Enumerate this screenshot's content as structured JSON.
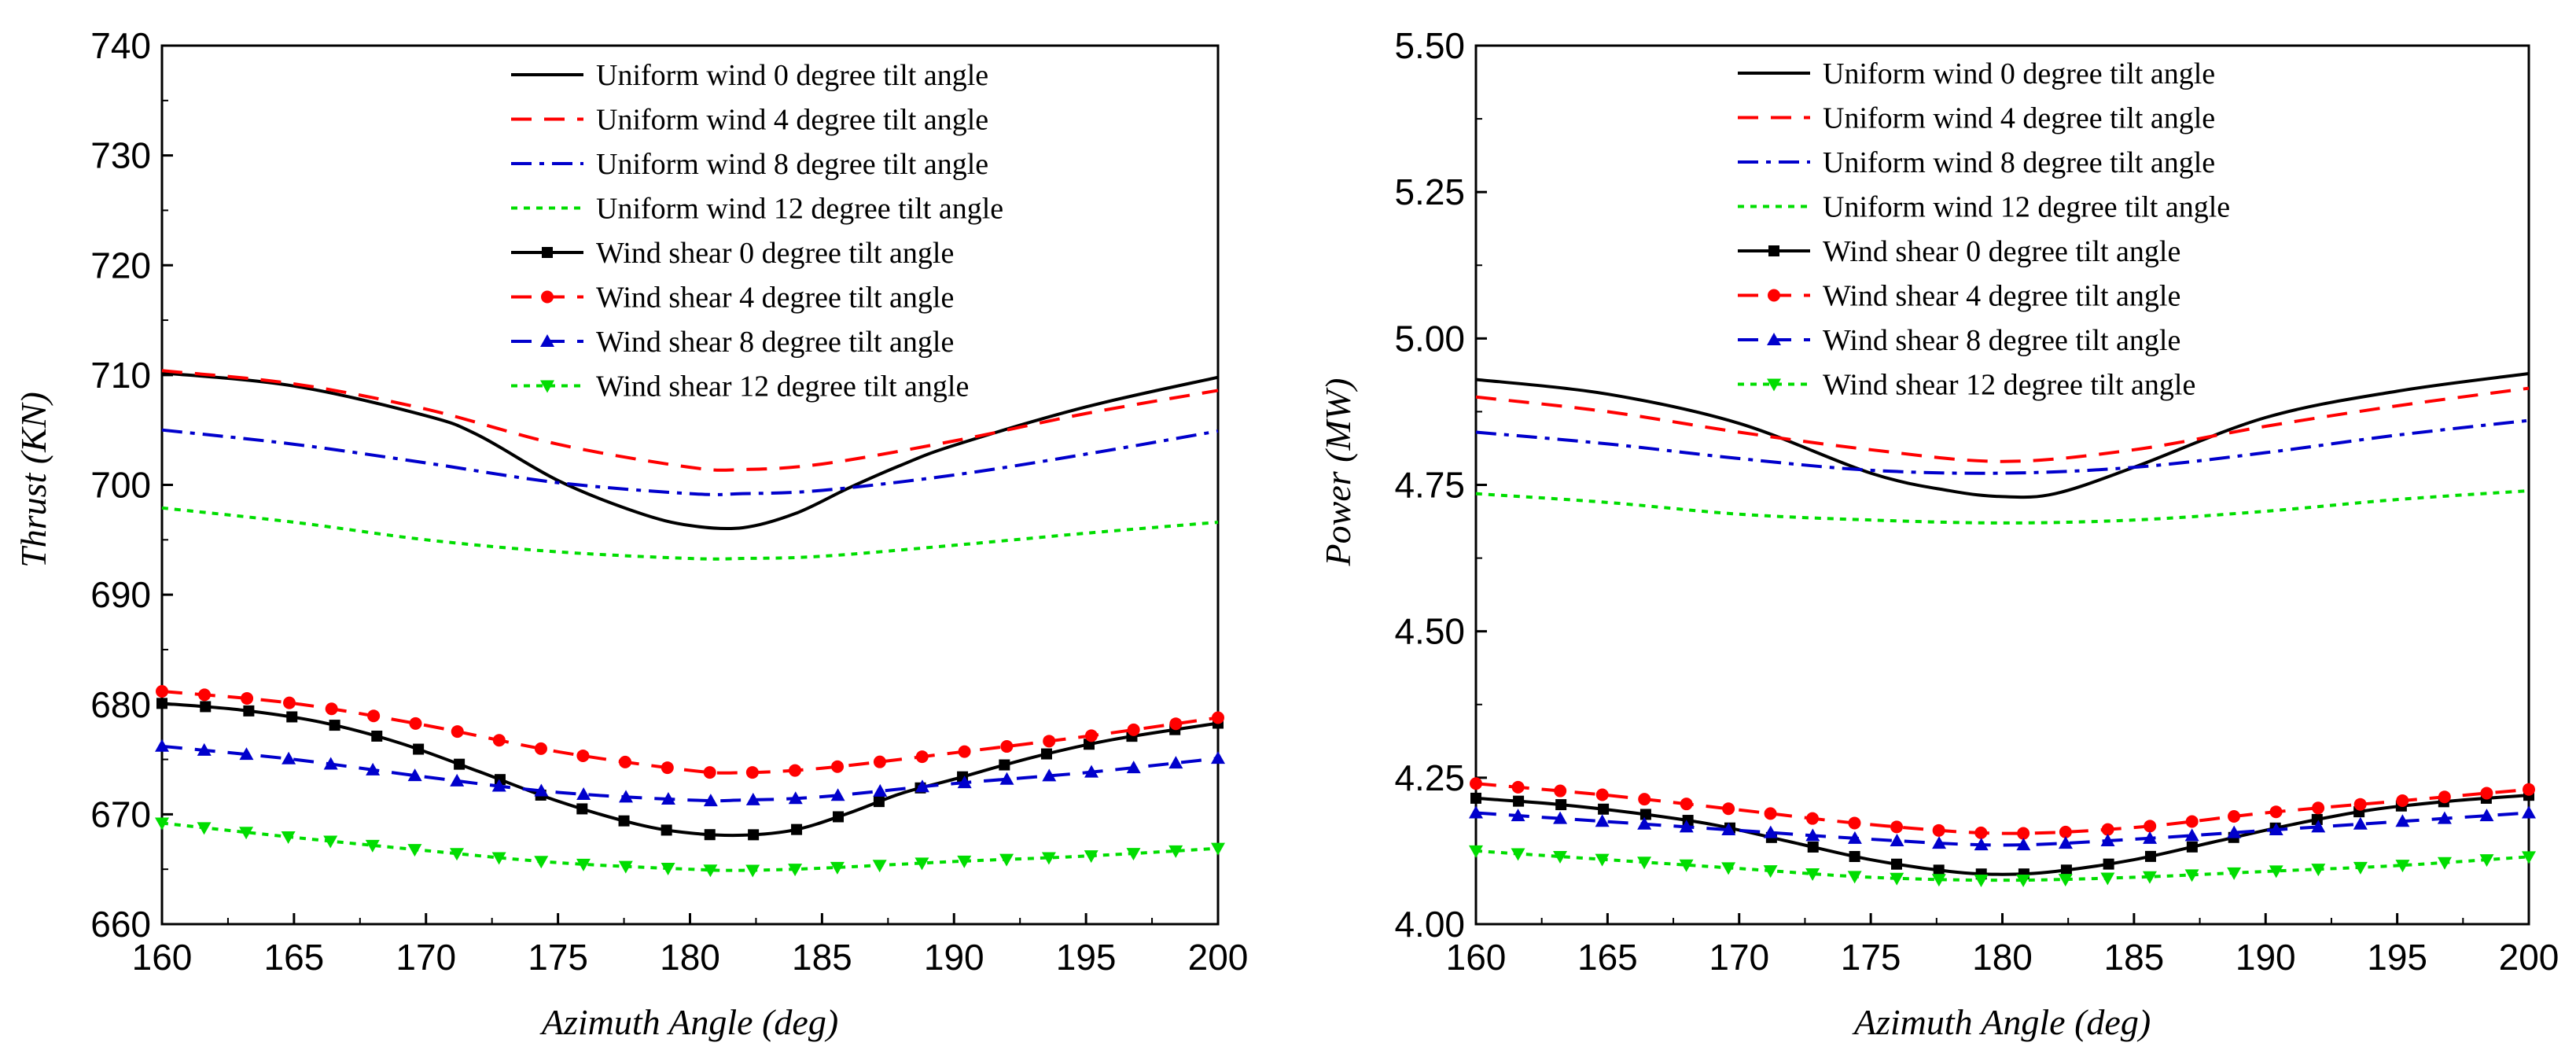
{
  "chart_data": [
    {
      "type": "line",
      "xlabel": "Azimuth Angle (deg)",
      "ylabel": "Thrust (KN)",
      "xlim": [
        160,
        200
      ],
      "ylim": [
        660,
        740
      ],
      "xticks": [
        160,
        165,
        170,
        175,
        180,
        185,
        190,
        195,
        200
      ],
      "yticks": [
        660,
        670,
        680,
        690,
        700,
        710,
        720,
        730,
        740
      ],
      "legend_position": "top-center",
      "series": [
        {
          "name": "Uniform wind 0 degree tilt angle",
          "color": "#000000",
          "style": "solid",
          "marker": "none",
          "x": [
            160,
            165,
            170,
            172,
            175,
            178,
            180,
            182,
            184,
            186,
            188,
            190,
            195,
            200
          ],
          "y": [
            710.2,
            709,
            706.3,
            704.5,
            700.4,
            697.5,
            696.3,
            696.1,
            697.4,
            699.7,
            701.8,
            703.6,
            707.1,
            709.8
          ]
        },
        {
          "name": "Uniform wind 4 degree tilt angle",
          "color": "#ff0000",
          "style": "dash",
          "marker": "none",
          "x": [
            160,
            165,
            170,
            175,
            180,
            182,
            185,
            190,
            195,
            200
          ],
          "y": [
            710.4,
            709.2,
            706.9,
            703.7,
            701.6,
            701.4,
            701.9,
            704.0,
            706.5,
            708.6
          ]
        },
        {
          "name": "Uniform wind 8 degree tilt angle",
          "color": "#0000cc",
          "style": "dashdot",
          "marker": "none",
          "x": [
            160,
            165,
            170,
            175,
            180,
            182,
            185,
            190,
            195,
            200
          ],
          "y": [
            705.0,
            703.7,
            702.0,
            700.2,
            699.2,
            699.2,
            699.5,
            700.9,
            702.8,
            704.9
          ]
        },
        {
          "name": "Uniform wind 12 degree tilt angle",
          "color": "#00dd00",
          "style": "dot",
          "marker": "none",
          "x": [
            160,
            165,
            170,
            175,
            180,
            182,
            185,
            190,
            195,
            200
          ],
          "y": [
            697.9,
            696.6,
            695.0,
            693.9,
            693.3,
            693.3,
            693.5,
            694.5,
            695.6,
            696.6
          ]
        },
        {
          "name": "Wind shear 0 degree tilt angle",
          "color": "#000000",
          "style": "solid",
          "marker": "square",
          "x": [
            160,
            163,
            166,
            169,
            172,
            175,
            178,
            180,
            182,
            184,
            186,
            188,
            190,
            193,
            196,
            200
          ],
          "y": [
            680.1,
            679.5,
            678.4,
            676.5,
            673.9,
            671.2,
            669.1,
            668.3,
            668.1,
            668.6,
            670.1,
            671.9,
            673.2,
            675.2,
            676.8,
            678.3
          ]
        },
        {
          "name": "Wind shear 4 degree tilt angle",
          "color": "#ff0000",
          "style": "dash",
          "marker": "circle",
          "x": [
            160,
            165,
            170,
            175,
            180,
            182,
            185,
            190,
            195,
            200
          ],
          "y": [
            681.2,
            680.1,
            678.1,
            675.7,
            674.0,
            673.8,
            674.2,
            675.6,
            677.1,
            678.8
          ]
        },
        {
          "name": "Wind shear 8 degree tilt angle",
          "color": "#0000cc",
          "style": "dash",
          "marker": "triangle-up",
          "x": [
            160,
            165,
            170,
            175,
            180,
            182,
            185,
            190,
            195,
            200
          ],
          "y": [
            676.2,
            675.0,
            673.4,
            672.0,
            671.3,
            671.3,
            671.6,
            672.8,
            673.8,
            675.1
          ]
        },
        {
          "name": "Wind shear 12 degree tilt angle",
          "color": "#00dd00",
          "style": "dot",
          "marker": "triangle-down",
          "x": [
            160,
            165,
            170,
            175,
            180,
            182,
            185,
            190,
            195,
            200
          ],
          "y": [
            669.2,
            667.9,
            666.7,
            665.6,
            665.0,
            664.9,
            665.1,
            665.7,
            666.2,
            666.9
          ]
        }
      ]
    },
    {
      "type": "line",
      "xlabel": "Azimuth Angle (deg)",
      "ylabel": "Power (MW)",
      "xlim": [
        160,
        200
      ],
      "ylim": [
        4.0,
        5.5
      ],
      "xticks": [
        160,
        165,
        170,
        175,
        180,
        185,
        190,
        195,
        200
      ],
      "yticks": [
        "4.00",
        "4.25",
        "4.50",
        "4.75",
        "5.00",
        "5.25",
        "5.50"
      ],
      "legend_position": "top-center",
      "series": [
        {
          "name": "Uniform wind 0 degree tilt angle",
          "color": "#000000",
          "style": "solid",
          "marker": "none",
          "x": [
            160,
            165,
            170,
            175,
            178,
            180,
            182,
            185,
            190,
            195,
            200
          ],
          "y": [
            4.93,
            4.905,
            4.855,
            4.77,
            4.74,
            4.73,
            4.735,
            4.78,
            4.865,
            4.91,
            4.94
          ]
        },
        {
          "name": "Uniform wind 4 degree tilt angle",
          "color": "#ff0000",
          "style": "dash",
          "marker": "none",
          "x": [
            160,
            165,
            170,
            175,
            180,
            185,
            190,
            195,
            200
          ],
          "y": [
            4.9,
            4.875,
            4.84,
            4.81,
            4.79,
            4.81,
            4.85,
            4.885,
            4.915
          ]
        },
        {
          "name": "Uniform wind 8 degree tilt angle",
          "color": "#0000cc",
          "style": "dashdot",
          "marker": "none",
          "x": [
            160,
            165,
            170,
            175,
            180,
            185,
            190,
            195,
            200
          ],
          "y": [
            4.84,
            4.82,
            4.795,
            4.775,
            4.77,
            4.78,
            4.805,
            4.835,
            4.86
          ]
        },
        {
          "name": "Uniform wind 12 degree tilt angle",
          "color": "#00dd00",
          "style": "dot",
          "marker": "none",
          "x": [
            160,
            165,
            170,
            175,
            180,
            185,
            190,
            195,
            200
          ],
          "y": [
            4.735,
            4.72,
            4.7,
            4.69,
            4.685,
            4.69,
            4.705,
            4.725,
            4.74
          ]
        },
        {
          "name": "Wind shear 0 degree tilt angle",
          "color": "#000000",
          "style": "solid",
          "marker": "square",
          "x": [
            160,
            163,
            166,
            169,
            172,
            175,
            178,
            180,
            182,
            185,
            188,
            191,
            194,
            197,
            200
          ],
          "y": [
            4.215,
            4.205,
            4.19,
            4.17,
            4.14,
            4.11,
            4.09,
            4.085,
            4.09,
            4.11,
            4.14,
            4.17,
            4.195,
            4.21,
            4.22
          ]
        },
        {
          "name": "Wind shear 4 degree tilt angle",
          "color": "#ff0000",
          "style": "dash",
          "marker": "circle",
          "x": [
            160,
            165,
            170,
            175,
            180,
            185,
            190,
            195,
            200
          ],
          "y": [
            4.24,
            4.22,
            4.195,
            4.17,
            4.155,
            4.165,
            4.19,
            4.21,
            4.23
          ]
        },
        {
          "name": "Wind shear 8 degree tilt angle",
          "color": "#0000cc",
          "style": "dash",
          "marker": "triangle-up",
          "x": [
            160,
            165,
            170,
            175,
            180,
            185,
            190,
            195,
            200
          ],
          "y": [
            4.19,
            4.175,
            4.16,
            4.145,
            4.135,
            4.145,
            4.16,
            4.175,
            4.19
          ]
        },
        {
          "name": "Wind shear 12 degree tilt angle",
          "color": "#00dd00",
          "style": "dot",
          "marker": "triangle-down",
          "x": [
            160,
            165,
            170,
            175,
            180,
            185,
            190,
            195,
            200
          ],
          "y": [
            4.125,
            4.11,
            4.095,
            4.08,
            4.075,
            4.08,
            4.09,
            4.1,
            4.115
          ]
        }
      ]
    }
  ]
}
